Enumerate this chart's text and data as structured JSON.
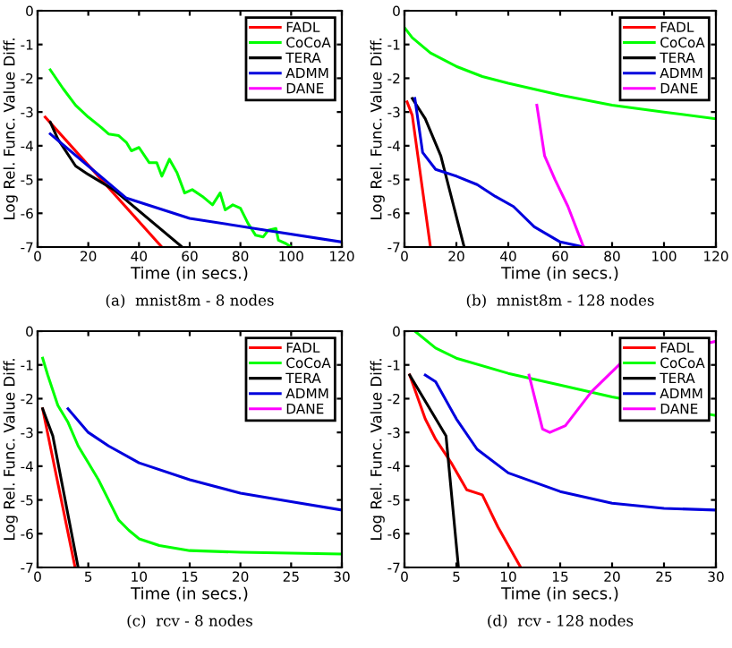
{
  "chart_data": [
    {
      "type": "line",
      "title": "(a)  mnist8m - 8 nodes",
      "xlabel": "Time (in secs.)",
      "ylabel": "Log Rel. Func. Value Diff.",
      "xlim": [
        0,
        120
      ],
      "xticks": [
        0,
        20,
        40,
        60,
        80,
        100,
        120
      ],
      "ylim": [
        -7,
        0
      ],
      "yticks": [
        -7,
        -6,
        -5,
        -4,
        -3,
        -2,
        -1,
        0
      ],
      "grid": false,
      "legend": "top right",
      "marker": "none",
      "line_style": "solid",
      "series": [
        {
          "name": "FADL",
          "color": "#ff0000",
          "x": [
            3,
            49
          ],
          "values": [
            -3.15,
            -7
          ]
        },
        {
          "name": "CoCoA",
          "color": "#00ff00",
          "x": [
            5,
            10,
            15,
            20,
            25,
            28,
            32,
            35,
            37,
            40,
            44,
            47,
            49,
            52,
            55,
            58,
            61,
            65,
            69,
            72,
            74,
            77,
            80,
            83,
            86,
            89,
            91,
            94,
            95,
            98,
            100
          ],
          "values": [
            -1.75,
            -2.3,
            -2.8,
            -3.15,
            -3.45,
            -3.65,
            -3.7,
            -3.9,
            -4.15,
            -4.05,
            -4.5,
            -4.5,
            -4.9,
            -4.4,
            -4.8,
            -5.4,
            -5.3,
            -5.5,
            -5.75,
            -5.4,
            -5.9,
            -5.75,
            -5.85,
            -6.3,
            -6.65,
            -6.7,
            -6.5,
            -6.45,
            -6.8,
            -6.9,
            -7
          ]
        },
        {
          "name": "TERA",
          "color": "#000000",
          "x": [
            5,
            8,
            15,
            20,
            30,
            57
          ],
          "values": [
            -3.3,
            -3.8,
            -4.6,
            -4.85,
            -5.3,
            -7
          ]
        },
        {
          "name": "ADMM",
          "color": "#0000dd",
          "x": [
            5,
            20,
            35,
            60,
            90,
            120
          ],
          "values": [
            -3.65,
            -4.6,
            -5.55,
            -6.15,
            -6.5,
            -6.85
          ]
        },
        {
          "name": "DANE",
          "color": "#ff00ff"
        }
      ]
    },
    {
      "type": "line",
      "title": "(b)  mnist8m - 128 nodes",
      "xlabel": "Time (in secs.)",
      "ylabel": "Log Rel. Func. Value Diff.",
      "xlim": [
        0,
        120
      ],
      "xticks": [
        0,
        20,
        40,
        60,
        80,
        100,
        120
      ],
      "ylim": [
        -7,
        0
      ],
      "yticks": [
        -7,
        -6,
        -5,
        -4,
        -3,
        -2,
        -1,
        0
      ],
      "grid": false,
      "legend": "top right",
      "marker": "none",
      "line_style": "solid",
      "series": [
        {
          "name": "FADL",
          "color": "#ff0000",
          "x": [
            1,
            3,
            10
          ],
          "values": [
            -2.7,
            -3.1,
            -7
          ]
        },
        {
          "name": "CoCoA",
          "color": "#00ff00",
          "x": [
            0,
            3,
            10,
            20,
            30,
            40,
            60,
            80,
            100,
            120
          ],
          "values": [
            -0.5,
            -0.8,
            -1.25,
            -1.65,
            -1.95,
            -2.15,
            -2.5,
            -2.8,
            -3.0,
            -3.2
          ]
        },
        {
          "name": "TERA",
          "color": "#000000",
          "x": [
            3,
            8,
            14,
            18,
            23
          ],
          "values": [
            -2.6,
            -3.2,
            -4.3,
            -5.5,
            -7
          ]
        },
        {
          "name": "ADMM",
          "color": "#0000dd",
          "x": [
            4,
            7,
            12,
            20,
            28,
            35,
            42,
            50,
            60,
            69
          ],
          "values": [
            -2.6,
            -4.2,
            -4.7,
            -4.9,
            -5.15,
            -5.5,
            -5.8,
            -6.4,
            -6.85,
            -7
          ]
        },
        {
          "name": "DANE",
          "color": "#ff00ff",
          "x": [
            51,
            54,
            58,
            63,
            69
          ],
          "values": [
            -2.8,
            -4.3,
            -5.0,
            -5.8,
            -7
          ]
        }
      ]
    },
    {
      "type": "line",
      "title": "(c)  rcv - 8 nodes",
      "xlabel": "Time (in secs.)",
      "ylabel": "Log Rel. Func. Value Diff.",
      "xlim": [
        0,
        30
      ],
      "xticks": [
        0,
        5,
        10,
        15,
        20,
        25,
        30
      ],
      "ylim": [
        -7,
        0
      ],
      "yticks": [
        -7,
        -6,
        -5,
        -4,
        -3,
        -2,
        -1,
        0
      ],
      "grid": false,
      "legend": "top right",
      "marker": "none",
      "line_style": "solid",
      "series": [
        {
          "name": "FADL",
          "color": "#ff0000",
          "x": [
            0.5,
            3.7
          ],
          "values": [
            -2.3,
            -7
          ]
        },
        {
          "name": "CoCoA",
          "color": "#00ff00",
          "x": [
            0.5,
            1,
            2,
            3,
            4,
            5,
            6,
            7,
            8,
            9,
            10,
            12,
            15,
            20,
            30
          ],
          "values": [
            -0.8,
            -1.3,
            -2.2,
            -2.7,
            -3.4,
            -3.9,
            -4.4,
            -5.0,
            -5.6,
            -5.9,
            -6.15,
            -6.35,
            -6.5,
            -6.55,
            -6.6
          ]
        },
        {
          "name": "TERA",
          "color": "#000000",
          "x": [
            0.5,
            1.5,
            4
          ],
          "values": [
            -2.3,
            -3.1,
            -7
          ]
        },
        {
          "name": "ADMM",
          "color": "#0000dd",
          "x": [
            3,
            5,
            7,
            10,
            15,
            20,
            25,
            30
          ],
          "values": [
            -2.3,
            -3.0,
            -3.4,
            -3.9,
            -4.4,
            -4.8,
            -5.05,
            -5.3
          ]
        },
        {
          "name": "DANE",
          "color": "#ff00ff"
        }
      ]
    },
    {
      "type": "line",
      "title": "(d)  rcv - 128 nodes",
      "xlabel": "Time (in secs.)",
      "ylabel": "Log Rel. Func. Value Diff.",
      "xlim": [
        0,
        30
      ],
      "xticks": [
        0,
        5,
        10,
        15,
        20,
        25,
        30
      ],
      "ylim": [
        -7,
        0
      ],
      "yticks": [
        -7,
        -6,
        -5,
        -4,
        -3,
        -2,
        -1,
        0
      ],
      "grid": false,
      "legend": "top right",
      "marker": "none",
      "line_style": "solid",
      "series": [
        {
          "name": "FADL",
          "color": "#ff0000",
          "x": [
            0.5,
            2,
            3,
            4.5,
            6,
            7.5,
            9,
            11.2
          ],
          "values": [
            -1.3,
            -2.6,
            -3.2,
            -3.9,
            -4.7,
            -4.85,
            -5.8,
            -7
          ]
        },
        {
          "name": "CoCoA",
          "color": "#00ff00",
          "x": [
            1,
            3,
            5,
            10,
            15,
            20,
            30
          ],
          "values": [
            0,
            -0.5,
            -0.8,
            -1.25,
            -1.6,
            -1.95,
            -2.5
          ]
        },
        {
          "name": "TERA",
          "color": "#000000",
          "x": [
            0.5,
            4,
            5.2
          ],
          "values": [
            -1.3,
            -3.1,
            -7
          ]
        },
        {
          "name": "ADMM",
          "color": "#0000dd",
          "x": [
            2,
            3,
            5,
            7,
            10,
            15,
            20,
            25,
            30
          ],
          "values": [
            -1.3,
            -1.5,
            -2.6,
            -3.5,
            -4.2,
            -4.75,
            -5.1,
            -5.25,
            -5.3
          ]
        },
        {
          "name": "DANE",
          "color": "#ff00ff",
          "x": [
            12,
            13.3,
            14,
            15.5,
            18,
            21,
            30
          ],
          "values": [
            -1.3,
            -2.9,
            -3.0,
            -2.8,
            -1.8,
            -0.9,
            -0.3
          ]
        }
      ]
    }
  ]
}
